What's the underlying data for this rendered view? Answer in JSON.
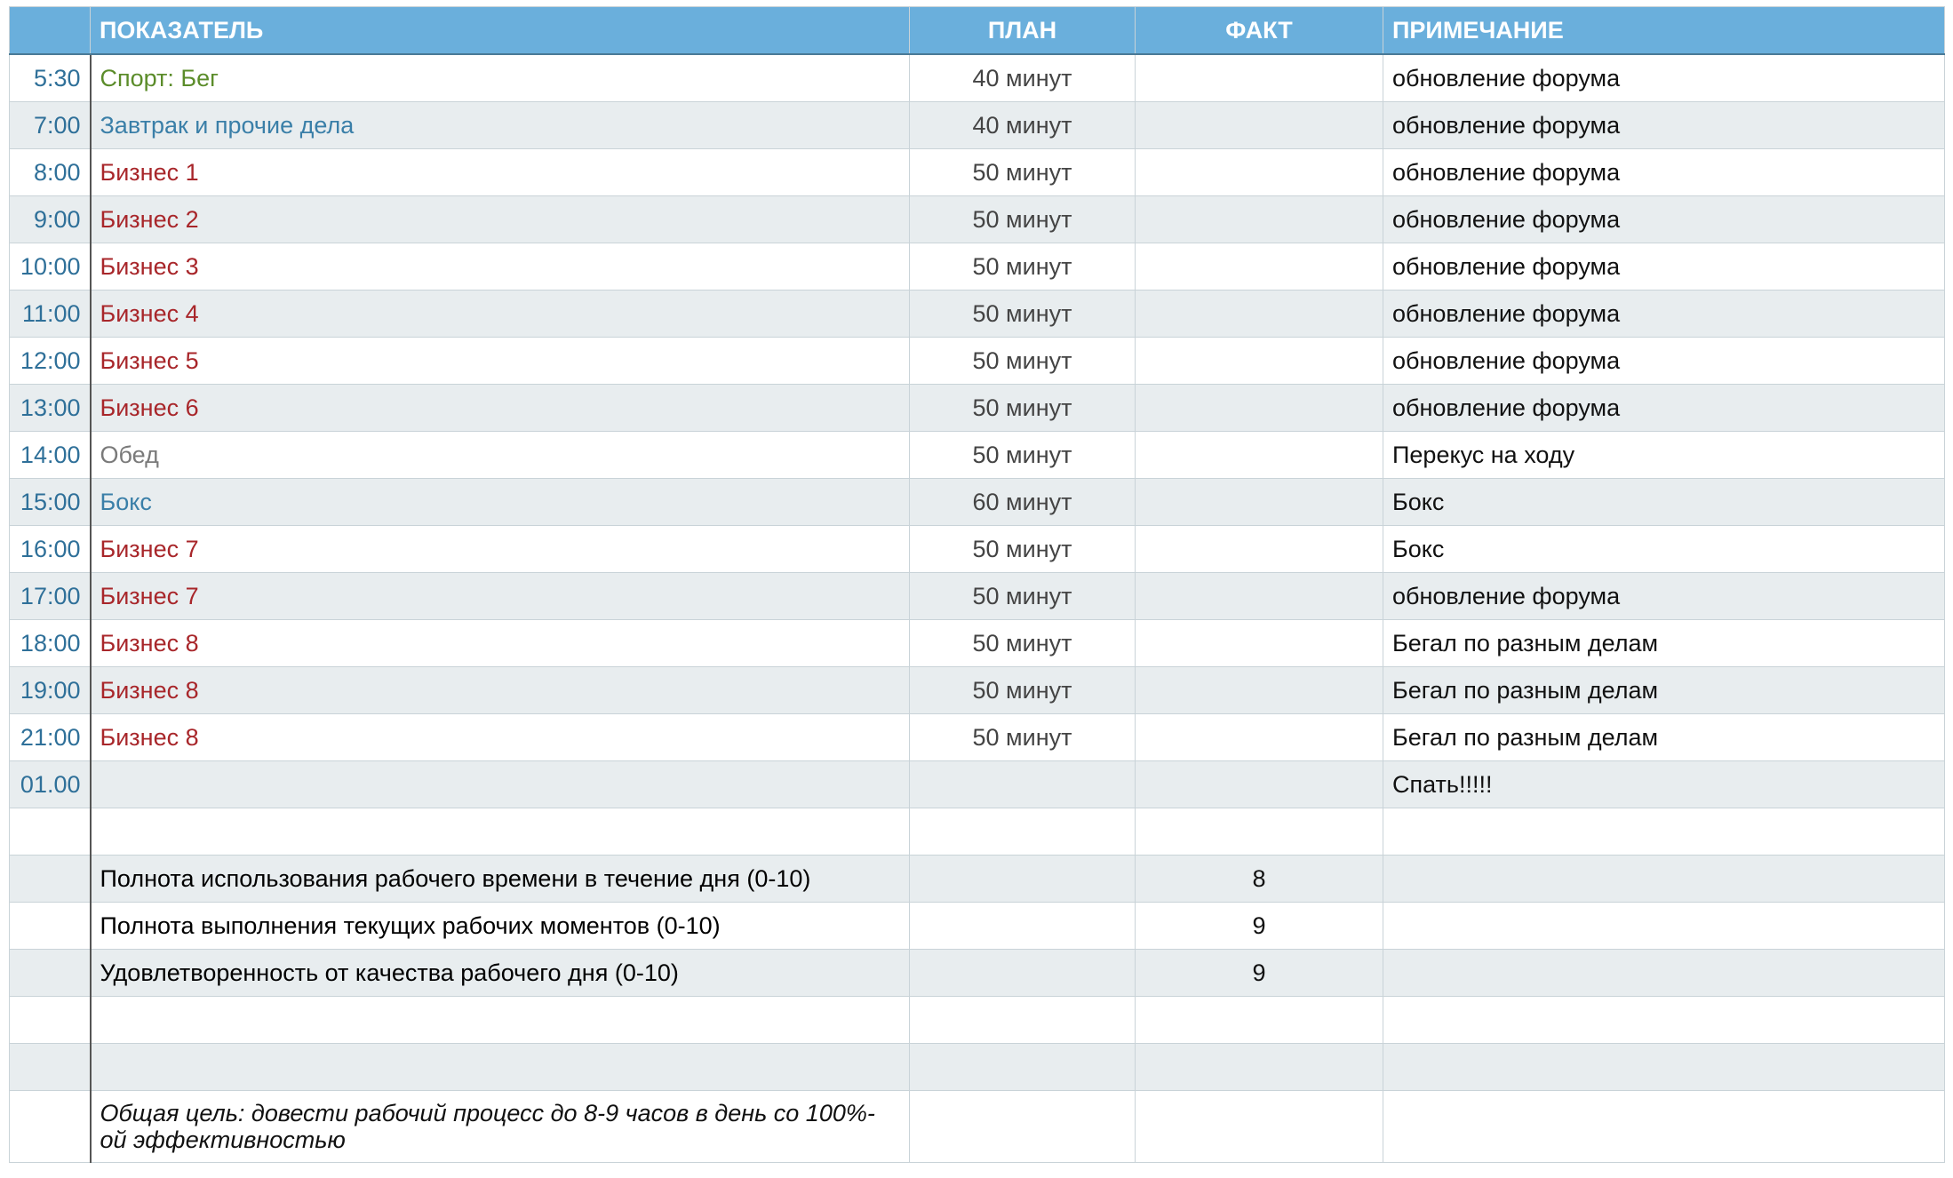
{
  "table": {
    "header": [
      "ПОКАЗАТЕЛЬ",
      "ПЛАН",
      "ФАКТ",
      "ПРИМЕЧАНИЕ"
    ],
    "rows": [
      {
        "time": "5:30",
        "name": "Спорт: Бег",
        "color": "#5b8c2a",
        "plan": "40 минут",
        "note": "обновление форума"
      },
      {
        "time": "7:00",
        "name": "Завтрак и прочие дела",
        "color": "#3a7fa8",
        "plan": "40 минут",
        "note": "обновление форума"
      },
      {
        "time": "8:00",
        "name": "Бизнес 1",
        "color": "#a8262a",
        "plan": "50 минут",
        "note": "обновление форума"
      },
      {
        "time": "9:00",
        "name": "Бизнес 2",
        "color": "#a8262a",
        "plan": "50 минут",
        "note": "обновление форума"
      },
      {
        "time": "10:00",
        "name": "Бизнес 3",
        "color": "#a8262a",
        "plan": "50 минут",
        "note": "обновление форума"
      },
      {
        "time": "11:00",
        "name": "Бизнес 4",
        "color": "#a8262a",
        "plan": "50 минут",
        "note": "обновление форума"
      },
      {
        "time": "12:00",
        "name": "Бизнес 5",
        "color": "#a8262a",
        "plan": "50 минут",
        "note": "обновление форума"
      },
      {
        "time": "13:00",
        "name": "Бизнес 6",
        "color": "#a8262a",
        "plan": "50 минут",
        "note": "обновление форума"
      },
      {
        "time": "14:00",
        "name": "Обед",
        "color": "#7a7a7a",
        "plan": "50 минут",
        "note": "Перекус на ходу"
      },
      {
        "time": "15:00",
        "name": "Бокс",
        "color": "#3a7fa8",
        "plan": "60 минут",
        "note": "Бокс"
      },
      {
        "time": "16:00",
        "name": "Бизнес 7",
        "color": "#a8262a",
        "plan": "50 минут",
        "note": "Бокс"
      },
      {
        "time": "17:00",
        "name": "Бизнес 7",
        "color": "#a8262a",
        "plan": "50 минут",
        "note": "обновление форума"
      },
      {
        "time": "18:00",
        "name": "Бизнес 8",
        "color": "#a8262a",
        "plan": "50 минут",
        "note": "Бегал по разным делам"
      },
      {
        "time": "19:00",
        "name": "Бизнес 8",
        "color": "#a8262a",
        "plan": "50 минут",
        "note": "Бегал по разным делам"
      },
      {
        "time": "21:00",
        "name": "Бизнес 8",
        "color": "#a8262a",
        "plan": "50 минут",
        "note": "Бегал по разным делам"
      },
      {
        "time": "01.00",
        "note": "Спать!!!!!"
      },
      {},
      {
        "name": "Полнота использования рабочего времени в течение дня (0-10)",
        "fact": 8
      },
      {
        "name": "Полнота выполнения текущих рабочих моментов (0-10)",
        "fact": 9
      },
      {
        "name": "Удовлетворенность от качества рабочего дня (0-10)",
        "fact": 9
      },
      {},
      {}
    ],
    "goal": "Общая цель: довести рабочий процесс до 8-9 часов в день со 100%-ой эффективностью"
  }
}
